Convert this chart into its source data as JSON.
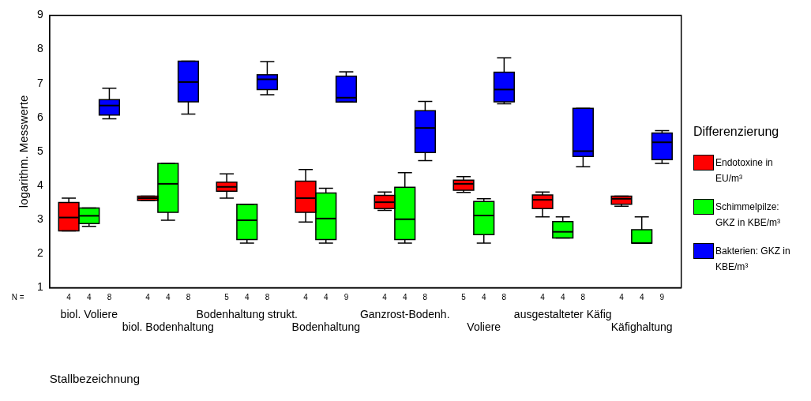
{
  "chart_data": {
    "type": "box",
    "xlabel": "Stallbezeichnung",
    "ylabel": "logarithm. Messwerte",
    "legend": "right",
    "legend_title": "Differenzierung",
    "grid": false,
    "ylim": [
      1,
      9
    ],
    "yticks": [
      1,
      2,
      3,
      4,
      5,
      6,
      7,
      8,
      9
    ],
    "categories": [
      "biol. Voliere",
      "biol. Bodenhaltung",
      "Bodenhaltung strukt.",
      "Bodenhaltung",
      "Ganzrost-Bodenh.",
      "Voliere",
      "ausgestalteter Käfig",
      "Käfighaltung"
    ],
    "annotations": [
      "N ="
    ],
    "series": [
      {
        "name": "Endotoxine in EU/m³",
        "color": "#ff0000",
        "value_labels": [
          "4",
          "4",
          "5",
          "4",
          "4",
          "5",
          "4",
          "4"
        ],
        "boxes": [
          {
            "low": 2.67,
            "q1": 2.67,
            "median": 3.06,
            "q3": 3.5,
            "high": 3.63
          },
          {
            "low": 3.56,
            "q1": 3.56,
            "median": 3.63,
            "q3": 3.69,
            "high": 3.69
          },
          {
            "low": 3.63,
            "q1": 3.83,
            "median": 3.96,
            "q3": 4.1,
            "high": 4.34
          },
          {
            "low": 2.93,
            "q1": 3.21,
            "median": 3.63,
            "q3": 4.13,
            "high": 4.47
          },
          {
            "low": 3.27,
            "q1": 3.32,
            "median": 3.51,
            "q3": 3.71,
            "high": 3.81
          },
          {
            "low": 3.8,
            "q1": 3.86,
            "median": 4.05,
            "q3": 4.16,
            "high": 4.26
          },
          {
            "low": 3.08,
            "q1": 3.32,
            "median": 3.58,
            "q3": 3.72,
            "high": 3.81
          },
          {
            "low": 3.39,
            "q1": 3.45,
            "median": 3.61,
            "q3": 3.69,
            "high": 3.69
          }
        ]
      },
      {
        "name": "Schimmelpilze: GKZ in KBE/m³",
        "color": "#00ff00",
        "value_labels": [
          "4",
          "4",
          "4",
          "4",
          "4",
          "4",
          "4",
          "4"
        ],
        "boxes": [
          {
            "low": 2.8,
            "q1": 2.88,
            "median": 3.11,
            "q3": 3.34,
            "high": 3.34
          },
          {
            "low": 2.98,
            "q1": 3.21,
            "median": 4.05,
            "q3": 4.65,
            "high": 4.65
          },
          {
            "low": 2.31,
            "q1": 2.41,
            "median": 2.98,
            "q3": 3.45,
            "high": 3.45
          },
          {
            "low": 2.31,
            "q1": 2.41,
            "median": 3.03,
            "q3": 3.78,
            "high": 3.92
          },
          {
            "low": 2.31,
            "q1": 2.41,
            "median": 3.01,
            "q3": 3.95,
            "high": 4.38
          },
          {
            "low": 2.31,
            "q1": 2.56,
            "median": 3.12,
            "q3": 3.53,
            "high": 3.61
          },
          {
            "low": 2.46,
            "q1": 2.46,
            "median": 2.64,
            "q3": 2.94,
            "high": 3.08
          },
          {
            "low": 2.31,
            "q1": 2.31,
            "median": 2.31,
            "q3": 2.7,
            "high": 3.08
          }
        ]
      },
      {
        "name": "Bakterien: GKZ in KBE/m³",
        "color": "#0000ff",
        "value_labels": [
          "8",
          "8",
          "8",
          "9",
          "8",
          "8",
          "8",
          "9"
        ],
        "boxes": [
          {
            "low": 5.96,
            "q1": 6.07,
            "median": 6.35,
            "q3": 6.52,
            "high": 6.86
          },
          {
            "low": 6.1,
            "q1": 6.46,
            "median": 7.04,
            "q3": 7.65,
            "high": 7.65
          },
          {
            "low": 6.67,
            "q1": 6.82,
            "median": 7.12,
            "q3": 7.25,
            "high": 7.64
          },
          {
            "low": 6.45,
            "q1": 6.45,
            "median": 6.58,
            "q3": 7.21,
            "high": 7.34
          },
          {
            "low": 4.73,
            "q1": 4.97,
            "median": 5.69,
            "q3": 6.2,
            "high": 6.47
          },
          {
            "low": 6.4,
            "q1": 6.46,
            "median": 6.82,
            "q3": 7.33,
            "high": 7.75
          },
          {
            "low": 4.55,
            "q1": 4.85,
            "median": 5.01,
            "q3": 6.27,
            "high": 6.27
          },
          {
            "low": 4.65,
            "q1": 4.76,
            "median": 5.27,
            "q3": 5.54,
            "high": 5.61
          }
        ]
      }
    ]
  }
}
